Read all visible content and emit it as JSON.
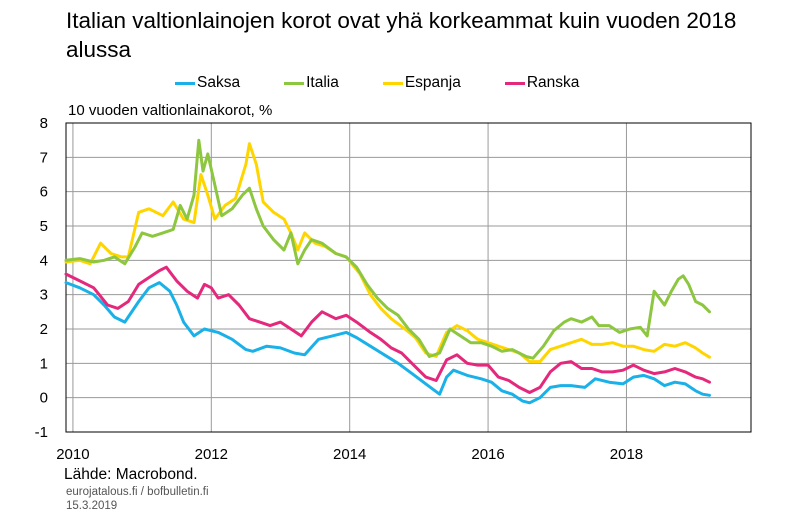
{
  "title": "Italian valtionlainojen korot ovat yhä korkeammat kuin vuoden 2018 alussa",
  "source": "Lähde: Macrobond.",
  "site": "eurojatalous.fi  / bofbulletin.fi",
  "date": "15.3.2019",
  "chart_data": {
    "type": "line",
    "title": "Italian valtionlainojen korot ovat yhä korkeammat kuin vuoden 2018 alussa",
    "ylabel": "10 vuoden valtionlainakorot, %",
    "xlabel": "",
    "xlim": [
      2009.9,
      2019.8
    ],
    "ylim": [
      -1,
      8
    ],
    "x_ticks": [
      2010,
      2012,
      2014,
      2016,
      2018
    ],
    "x_tick_labels": [
      "2010",
      "2012",
      "2014",
      "2016",
      "2018"
    ],
    "y_ticks": [
      -1,
      0,
      1,
      2,
      3,
      4,
      5,
      6,
      7,
      8
    ],
    "y_tick_labels": [
      "-1",
      "0",
      "1",
      "2",
      "3",
      "4",
      "5",
      "6",
      "7",
      "8"
    ],
    "grid": true,
    "legend_position": "top",
    "series": [
      {
        "name": "Saksa",
        "color": "#1ab0e8",
        "points": [
          [
            2009.9,
            3.35
          ],
          [
            2010.1,
            3.2
          ],
          [
            2010.3,
            3.0
          ],
          [
            2010.45,
            2.7
          ],
          [
            2010.6,
            2.35
          ],
          [
            2010.75,
            2.2
          ],
          [
            2010.95,
            2.8
          ],
          [
            2011.1,
            3.2
          ],
          [
            2011.25,
            3.35
          ],
          [
            2011.4,
            3.1
          ],
          [
            2011.5,
            2.7
          ],
          [
            2011.6,
            2.2
          ],
          [
            2011.75,
            1.8
          ],
          [
            2011.9,
            2.0
          ],
          [
            2012.1,
            1.9
          ],
          [
            2012.3,
            1.7
          ],
          [
            2012.5,
            1.4
          ],
          [
            2012.6,
            1.35
          ],
          [
            2012.8,
            1.5
          ],
          [
            2013.0,
            1.45
          ],
          [
            2013.2,
            1.3
          ],
          [
            2013.35,
            1.25
          ],
          [
            2013.55,
            1.7
          ],
          [
            2013.75,
            1.8
          ],
          [
            2013.95,
            1.9
          ],
          [
            2014.1,
            1.75
          ],
          [
            2014.3,
            1.5
          ],
          [
            2014.5,
            1.25
          ],
          [
            2014.7,
            1.0
          ],
          [
            2014.9,
            0.7
          ],
          [
            2015.1,
            0.4
          ],
          [
            2015.3,
            0.1
          ],
          [
            2015.4,
            0.6
          ],
          [
            2015.5,
            0.8
          ],
          [
            2015.7,
            0.65
          ],
          [
            2015.9,
            0.55
          ],
          [
            2016.05,
            0.45
          ],
          [
            2016.2,
            0.2
          ],
          [
            2016.35,
            0.1
          ],
          [
            2016.5,
            -0.1
          ],
          [
            2016.6,
            -0.15
          ],
          [
            2016.75,
            0.0
          ],
          [
            2016.9,
            0.3
          ],
          [
            2017.05,
            0.35
          ],
          [
            2017.2,
            0.35
          ],
          [
            2017.4,
            0.3
          ],
          [
            2017.55,
            0.55
          ],
          [
            2017.75,
            0.45
          ],
          [
            2017.95,
            0.4
          ],
          [
            2018.1,
            0.6
          ],
          [
            2018.25,
            0.65
          ],
          [
            2018.4,
            0.55
          ],
          [
            2018.55,
            0.35
          ],
          [
            2018.7,
            0.45
          ],
          [
            2018.85,
            0.4
          ],
          [
            2019.0,
            0.2
          ],
          [
            2019.1,
            0.1
          ],
          [
            2019.2,
            0.07
          ]
        ]
      },
      {
        "name": "Italia",
        "color": "#8dc63f",
        "points": [
          [
            2009.9,
            4.0
          ],
          [
            2010.1,
            4.05
          ],
          [
            2010.3,
            3.95
          ],
          [
            2010.45,
            4.0
          ],
          [
            2010.6,
            4.1
          ],
          [
            2010.75,
            3.9
          ],
          [
            2010.9,
            4.4
          ],
          [
            2011.0,
            4.8
          ],
          [
            2011.15,
            4.7
          ],
          [
            2011.3,
            4.8
          ],
          [
            2011.45,
            4.9
          ],
          [
            2011.55,
            5.6
          ],
          [
            2011.65,
            5.2
          ],
          [
            2011.75,
            5.9
          ],
          [
            2011.82,
            7.5
          ],
          [
            2011.88,
            6.6
          ],
          [
            2011.95,
            7.1
          ],
          [
            2012.05,
            6.2
          ],
          [
            2012.15,
            5.3
          ],
          [
            2012.3,
            5.5
          ],
          [
            2012.45,
            5.9
          ],
          [
            2012.55,
            6.1
          ],
          [
            2012.65,
            5.5
          ],
          [
            2012.75,
            5.0
          ],
          [
            2012.9,
            4.6
          ],
          [
            2013.05,
            4.3
          ],
          [
            2013.15,
            4.8
          ],
          [
            2013.25,
            3.9
          ],
          [
            2013.35,
            4.3
          ],
          [
            2013.45,
            4.6
          ],
          [
            2013.6,
            4.5
          ],
          [
            2013.8,
            4.2
          ],
          [
            2013.95,
            4.1
          ],
          [
            2014.1,
            3.8
          ],
          [
            2014.25,
            3.3
          ],
          [
            2014.4,
            2.9
          ],
          [
            2014.55,
            2.6
          ],
          [
            2014.7,
            2.4
          ],
          [
            2014.85,
            2.0
          ],
          [
            2015.0,
            1.7
          ],
          [
            2015.15,
            1.2
          ],
          [
            2015.3,
            1.3
          ],
          [
            2015.45,
            2.0
          ],
          [
            2015.6,
            1.8
          ],
          [
            2015.75,
            1.6
          ],
          [
            2015.9,
            1.6
          ],
          [
            2016.05,
            1.5
          ],
          [
            2016.2,
            1.35
          ],
          [
            2016.35,
            1.4
          ],
          [
            2016.55,
            1.2
          ],
          [
            2016.65,
            1.15
          ],
          [
            2016.8,
            1.5
          ],
          [
            2016.95,
            1.95
          ],
          [
            2017.1,
            2.2
          ],
          [
            2017.2,
            2.3
          ],
          [
            2017.35,
            2.2
          ],
          [
            2017.5,
            2.35
          ],
          [
            2017.6,
            2.1
          ],
          [
            2017.75,
            2.1
          ],
          [
            2017.9,
            1.9
          ],
          [
            2018.05,
            2.0
          ],
          [
            2018.2,
            2.05
          ],
          [
            2018.3,
            1.8
          ],
          [
            2018.4,
            3.1
          ],
          [
            2018.55,
            2.7
          ],
          [
            2018.65,
            3.1
          ],
          [
            2018.75,
            3.45
          ],
          [
            2018.82,
            3.55
          ],
          [
            2018.9,
            3.3
          ],
          [
            2019.0,
            2.8
          ],
          [
            2019.1,
            2.7
          ],
          [
            2019.2,
            2.5
          ]
        ]
      },
      {
        "name": "Espanja",
        "color": "#ffd500",
        "points": [
          [
            2009.9,
            3.95
          ],
          [
            2010.1,
            4.0
          ],
          [
            2010.25,
            3.9
          ],
          [
            2010.4,
            4.5
          ],
          [
            2010.55,
            4.2
          ],
          [
            2010.7,
            4.1
          ],
          [
            2010.8,
            4.1
          ],
          [
            2010.95,
            5.4
          ],
          [
            2011.1,
            5.5
          ],
          [
            2011.3,
            5.3
          ],
          [
            2011.45,
            5.7
          ],
          [
            2011.6,
            5.2
          ],
          [
            2011.75,
            5.1
          ],
          [
            2011.85,
            6.5
          ],
          [
            2011.95,
            5.9
          ],
          [
            2012.05,
            5.2
          ],
          [
            2012.2,
            5.6
          ],
          [
            2012.35,
            5.8
          ],
          [
            2012.5,
            6.8
          ],
          [
            2012.55,
            7.4
          ],
          [
            2012.65,
            6.8
          ],
          [
            2012.75,
            5.7
          ],
          [
            2012.9,
            5.4
          ],
          [
            2013.05,
            5.2
          ],
          [
            2013.15,
            4.8
          ],
          [
            2013.25,
            4.3
          ],
          [
            2013.35,
            4.8
          ],
          [
            2013.5,
            4.5
          ],
          [
            2013.65,
            4.4
          ],
          [
            2013.8,
            4.2
          ],
          [
            2013.95,
            4.1
          ],
          [
            2014.15,
            3.6
          ],
          [
            2014.3,
            3.0
          ],
          [
            2014.45,
            2.6
          ],
          [
            2014.6,
            2.3
          ],
          [
            2014.8,
            2.0
          ],
          [
            2014.95,
            1.75
          ],
          [
            2015.1,
            1.3
          ],
          [
            2015.25,
            1.2
          ],
          [
            2015.4,
            1.9
          ],
          [
            2015.55,
            2.1
          ],
          [
            2015.7,
            1.95
          ],
          [
            2015.85,
            1.7
          ],
          [
            2016.0,
            1.6
          ],
          [
            2016.15,
            1.5
          ],
          [
            2016.3,
            1.4
          ],
          [
            2016.45,
            1.3
          ],
          [
            2016.6,
            1.05
          ],
          [
            2016.75,
            1.05
          ],
          [
            2016.9,
            1.4
          ],
          [
            2017.05,
            1.5
          ],
          [
            2017.2,
            1.6
          ],
          [
            2017.35,
            1.7
          ],
          [
            2017.5,
            1.55
          ],
          [
            2017.65,
            1.55
          ],
          [
            2017.8,
            1.6
          ],
          [
            2017.95,
            1.5
          ],
          [
            2018.1,
            1.5
          ],
          [
            2018.25,
            1.4
          ],
          [
            2018.4,
            1.35
          ],
          [
            2018.55,
            1.55
          ],
          [
            2018.7,
            1.5
          ],
          [
            2018.85,
            1.6
          ],
          [
            2019.0,
            1.45
          ],
          [
            2019.1,
            1.3
          ],
          [
            2019.2,
            1.18
          ]
        ]
      },
      {
        "name": "Ranska",
        "color": "#e4287c",
        "points": [
          [
            2009.9,
            3.6
          ],
          [
            2010.1,
            3.4
          ],
          [
            2010.3,
            3.2
          ],
          [
            2010.5,
            2.7
          ],
          [
            2010.65,
            2.6
          ],
          [
            2010.8,
            2.8
          ],
          [
            2010.95,
            3.3
          ],
          [
            2011.1,
            3.5
          ],
          [
            2011.25,
            3.7
          ],
          [
            2011.35,
            3.8
          ],
          [
            2011.5,
            3.4
          ],
          [
            2011.65,
            3.1
          ],
          [
            2011.8,
            2.9
          ],
          [
            2011.9,
            3.3
          ],
          [
            2012.0,
            3.2
          ],
          [
            2012.1,
            2.9
          ],
          [
            2012.25,
            3.0
          ],
          [
            2012.4,
            2.7
          ],
          [
            2012.55,
            2.3
          ],
          [
            2012.7,
            2.2
          ],
          [
            2012.85,
            2.1
          ],
          [
            2013.0,
            2.2
          ],
          [
            2013.15,
            2.0
          ],
          [
            2013.3,
            1.8
          ],
          [
            2013.45,
            2.2
          ],
          [
            2013.6,
            2.5
          ],
          [
            2013.8,
            2.3
          ],
          [
            2013.95,
            2.4
          ],
          [
            2014.1,
            2.2
          ],
          [
            2014.3,
            1.9
          ],
          [
            2014.45,
            1.7
          ],
          [
            2014.6,
            1.45
          ],
          [
            2014.75,
            1.3
          ],
          [
            2014.95,
            0.9
          ],
          [
            2015.1,
            0.6
          ],
          [
            2015.25,
            0.5
          ],
          [
            2015.4,
            1.1
          ],
          [
            2015.55,
            1.25
          ],
          [
            2015.7,
            1.0
          ],
          [
            2015.85,
            0.95
          ],
          [
            2016.0,
            0.95
          ],
          [
            2016.15,
            0.6
          ],
          [
            2016.3,
            0.5
          ],
          [
            2016.45,
            0.3
          ],
          [
            2016.6,
            0.15
          ],
          [
            2016.75,
            0.3
          ],
          [
            2016.9,
            0.75
          ],
          [
            2017.05,
            1.0
          ],
          [
            2017.2,
            1.05
          ],
          [
            2017.35,
            0.85
          ],
          [
            2017.5,
            0.85
          ],
          [
            2017.65,
            0.75
          ],
          [
            2017.8,
            0.75
          ],
          [
            2017.95,
            0.8
          ],
          [
            2018.1,
            0.95
          ],
          [
            2018.25,
            0.8
          ],
          [
            2018.4,
            0.7
          ],
          [
            2018.55,
            0.75
          ],
          [
            2018.7,
            0.85
          ],
          [
            2018.85,
            0.75
          ],
          [
            2019.0,
            0.6
          ],
          [
            2019.1,
            0.55
          ],
          [
            2019.2,
            0.45
          ]
        ]
      }
    ]
  }
}
